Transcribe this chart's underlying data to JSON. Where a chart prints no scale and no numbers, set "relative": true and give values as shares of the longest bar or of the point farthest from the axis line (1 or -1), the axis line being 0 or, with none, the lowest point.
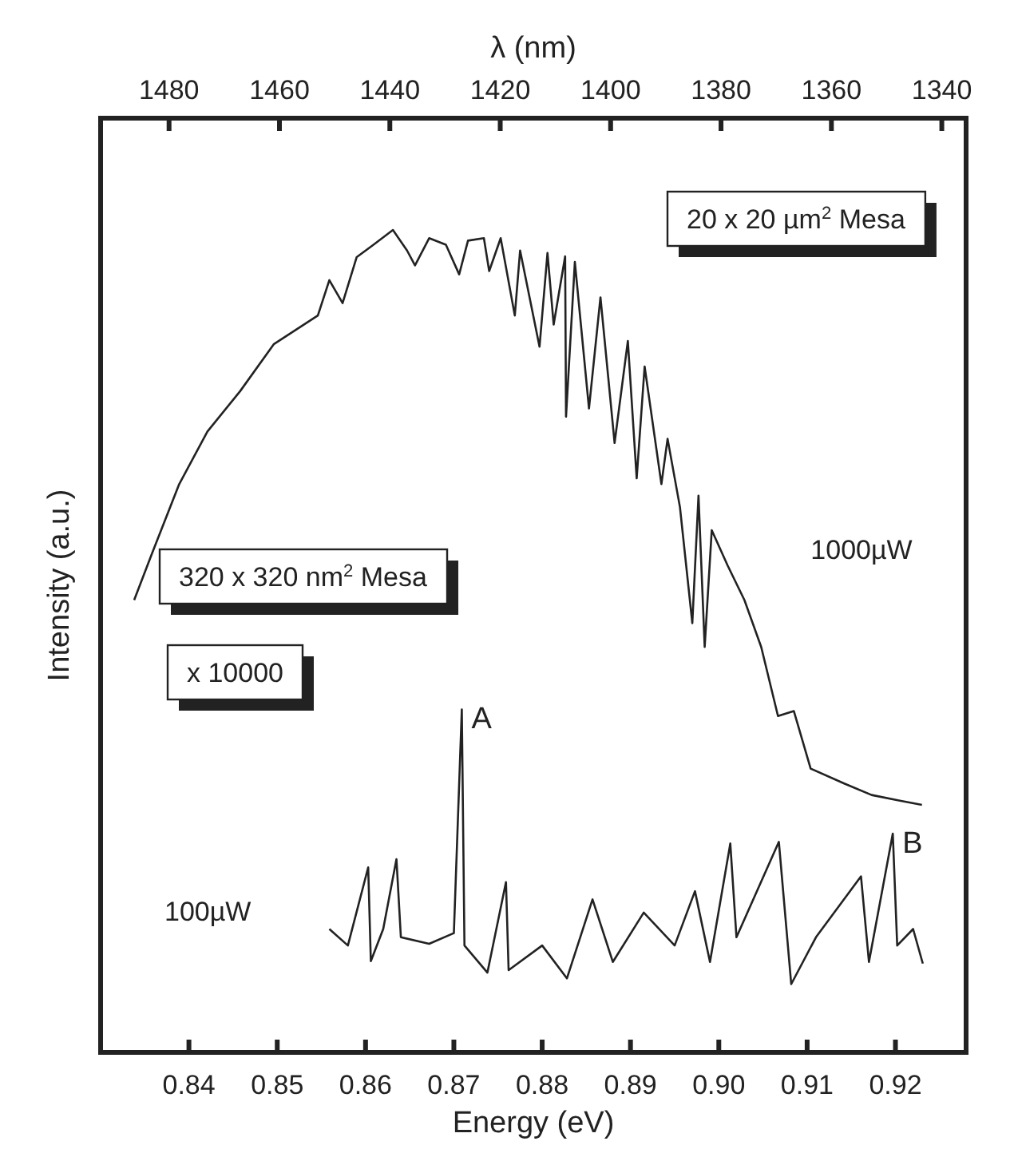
{
  "chart_data": {
    "type": "line",
    "relative": true,
    "xlabel": "Energy (eV)",
    "ylabel": "Intensity (a.u.)",
    "x2label": "λ (nm)",
    "xlim": [
      0.83,
      0.928
    ],
    "xticks": [
      {
        "value": 0.84,
        "label": "0.84"
      },
      {
        "value": 0.85,
        "label": "0.85"
      },
      {
        "value": 0.86,
        "label": "0.86"
      },
      {
        "value": 0.87,
        "label": "0.87"
      },
      {
        "value": 0.88,
        "label": "0.88"
      },
      {
        "value": 0.89,
        "label": "0.89"
      },
      {
        "value": 0.9,
        "label": "0.90"
      },
      {
        "value": 0.91,
        "label": "0.91"
      },
      {
        "value": 0.92,
        "label": "0.92"
      }
    ],
    "x2lim": [
      1492.4,
      1335.6
    ],
    "x2ticks": [
      1480,
      1460,
      1440,
      1420,
      1400,
      1380,
      1360,
      1340
    ],
    "grid": false,
    "marker": "none",
    "line_style": "solid",
    "series": [
      {
        "name": "1000µW",
        "color": "#222222",
        "x": [
          0.8338,
          0.8358,
          0.8389,
          0.8421,
          0.8458,
          0.8496,
          0.8546,
          0.8559,
          0.8574,
          0.859,
          0.8609,
          0.8631,
          0.8647,
          0.8656,
          0.8672,
          0.8691,
          0.8706,
          0.8716,
          0.8734,
          0.874,
          0.8753,
          0.8769,
          0.8775,
          0.8797,
          0.8806,
          0.8813,
          0.8826,
          0.8827,
          0.8837,
          0.8853,
          0.8866,
          0.8882,
          0.8897,
          0.8907,
          0.8916,
          0.8935,
          0.8942,
          0.8956,
          0.897,
          0.8977,
          0.8984,
          0.8992,
          0.901,
          0.9029,
          0.9048,
          0.9067,
          0.9085,
          0.9104,
          0.9142,
          0.9173,
          0.9205,
          0.923
        ],
        "values": [
          0.55,
          0.606,
          0.691,
          0.755,
          0.804,
          0.861,
          0.896,
          0.939,
          0.911,
          0.967,
          0.982,
          1,
          0.975,
          0.957,
          0.99,
          0.982,
          0.946,
          0.987,
          0.99,
          0.95,
          0.99,
          0.896,
          0.975,
          0.858,
          0.972,
          0.885,
          0.968,
          0.773,
          0.961,
          0.783,
          0.918,
          0.741,
          0.865,
          0.698,
          0.834,
          0.691,
          0.746,
          0.663,
          0.522,
          0.677,
          0.493,
          0.635,
          0.592,
          0.55,
          0.493,
          0.409,
          0.415,
          0.345,
          0.327,
          0.313,
          0.306,
          0.301
        ]
      },
      {
        "name": "100µW",
        "color": "#222222",
        "x": [
          0.8559,
          0.858,
          0.8603,
          0.8606,
          0.862,
          0.8635,
          0.864,
          0.8672,
          0.87,
          0.8709,
          0.8712,
          0.8738,
          0.8759,
          0.8762,
          0.88,
          0.8828,
          0.8857,
          0.888,
          0.8915,
          0.895,
          0.8973,
          0.899,
          0.9013,
          0.902,
          0.9068,
          0.9082,
          0.911,
          0.9161,
          0.917,
          0.9197,
          0.9202,
          0.922,
          0.9231
        ],
        "values": [
          0.15,
          0.13,
          0.225,
          0.111,
          0.15,
          0.235,
          0.14,
          0.132,
          0.145,
          0.417,
          0.13,
          0.097,
          0.207,
          0.1,
          0.13,
          0.09,
          0.186,
          0.11,
          0.17,
          0.13,
          0.196,
          0.11,
          0.254,
          0.14,
          0.256,
          0.083,
          0.14,
          0.214,
          0.11,
          0.266,
          0.13,
          0.15,
          0.108
        ]
      }
    ],
    "annotations": [
      "20 x 20 µm$^{2}$ Mesa",
      "320 x 320 nm$^{2}$ Mesa",
      "x 10000",
      {
        "text": "A",
        "x": 0.8709,
        "y": 0.417
      },
      {
        "text": "B",
        "x": 0.9197,
        "y": 0.266
      }
    ]
  }
}
